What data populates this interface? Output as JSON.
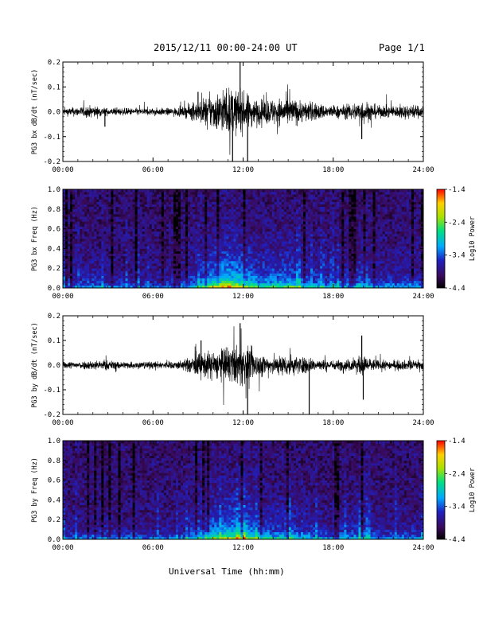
{
  "header": {
    "title": "2015/12/11   00:00-24:00 UT",
    "page": "Page 1/1"
  },
  "xaxis_title": "Universal Time (hh:mm)",
  "colors": {
    "trace": "#000000",
    "colorbar": [
      "#000000",
      "#3a0a5a",
      "#2020c0",
      "#00a8ff",
      "#00e080",
      "#a8e000",
      "#ffd000",
      "#ff0000"
    ]
  },
  "chart_data": [
    {
      "type": "line",
      "ylabel": "PG3 bx dB/dt (nT/sec)",
      "xlim_hours": [
        0,
        24
      ],
      "ylim": [
        -0.2,
        0.2
      ],
      "yticks": [
        "-0.2",
        "-0.1",
        "0.0",
        "0.1",
        "0.2"
      ],
      "xticks": [
        "00:00",
        "06:00",
        "12:00",
        "18:00",
        "24:00"
      ],
      "envelope": {
        "hours": [
          0,
          1,
          2,
          3,
          4,
          5,
          6,
          7,
          8,
          9,
          10,
          11,
          12,
          13,
          14,
          15,
          16,
          17,
          18,
          19,
          20,
          21,
          22,
          23,
          24
        ],
        "amplitude": [
          0.03,
          0.04,
          0.05,
          0.03,
          0.03,
          0.03,
          0.03,
          0.03,
          0.04,
          0.09,
          0.15,
          0.2,
          0.16,
          0.1,
          0.11,
          0.12,
          0.09,
          0.07,
          0.05,
          0.06,
          0.1,
          0.05,
          0.05,
          0.06,
          0.05
        ]
      },
      "spikes": [
        {
          "hour": 2.8,
          "value": -0.06
        },
        {
          "hour": 9.0,
          "value": 0.08
        },
        {
          "hour": 11.3,
          "value": -0.2
        },
        {
          "hour": 11.8,
          "value": 0.2
        },
        {
          "hour": 12.3,
          "value": -0.2
        },
        {
          "hour": 19.9,
          "value": -0.11
        }
      ]
    },
    {
      "type": "heatmap",
      "ylabel": "PG3 bx Freq (Hz)",
      "xlim_hours": [
        0,
        24
      ],
      "ylim": [
        0.0,
        1.0
      ],
      "yticks": [
        "0.0",
        "0.2",
        "0.4",
        "0.6",
        "0.8",
        "1.0"
      ],
      "xticks": [
        "00:00",
        "06:00",
        "12:00",
        "18:00",
        "24:00"
      ],
      "colorbar_label": "Log10 Power",
      "colorbar_range": [
        -4.4,
        -1.4
      ],
      "colorbar_ticks": [
        "-1.4",
        "-2.4",
        "-3.4",
        "-4.4"
      ]
    },
    {
      "type": "line",
      "ylabel": "PG3 by dB/dt (nT/sec)",
      "xlim_hours": [
        0,
        24
      ],
      "ylim": [
        -0.2,
        0.2
      ],
      "yticks": [
        "-0.2",
        "-0.1",
        "0.0",
        "0.1",
        "0.2"
      ],
      "xticks": [
        "00:00",
        "06:00",
        "12:00",
        "18:00",
        "24:00"
      ],
      "envelope": {
        "hours": [
          0,
          1,
          2,
          3,
          4,
          5,
          6,
          7,
          8,
          9,
          10,
          11,
          12,
          13,
          14,
          15,
          16,
          17,
          18,
          19,
          20,
          21,
          22,
          23,
          24
        ],
        "amplitude": [
          0.03,
          0.03,
          0.04,
          0.04,
          0.03,
          0.03,
          0.03,
          0.03,
          0.04,
          0.1,
          0.12,
          0.15,
          0.17,
          0.1,
          0.08,
          0.09,
          0.07,
          0.05,
          0.04,
          0.05,
          0.08,
          0.04,
          0.04,
          0.04,
          0.04
        ]
      },
      "spikes": [
        {
          "hour": 9.2,
          "value": 0.1
        },
        {
          "hour": 11.8,
          "value": 0.17
        },
        {
          "hour": 12.3,
          "value": -0.2
        },
        {
          "hour": 16.4,
          "value": -0.2
        },
        {
          "hour": 19.9,
          "value": 0.12
        },
        {
          "hour": 20.0,
          "value": -0.14
        }
      ]
    },
    {
      "type": "heatmap",
      "ylabel": "PG3 by Freq (Hz)",
      "xlim_hours": [
        0,
        24
      ],
      "ylim": [
        0.0,
        1.0
      ],
      "yticks": [
        "0.0",
        "0.2",
        "0.4",
        "0.6",
        "0.8",
        "1.0"
      ],
      "xticks": [
        "00:00",
        "06:00",
        "12:00",
        "18:00",
        "24:00"
      ],
      "colorbar_label": "Log10 Power",
      "colorbar_range": [
        -4.4,
        -1.4
      ],
      "colorbar_ticks": [
        "-1.4",
        "-2.4",
        "-3.4",
        "-4.4"
      ]
    }
  ]
}
